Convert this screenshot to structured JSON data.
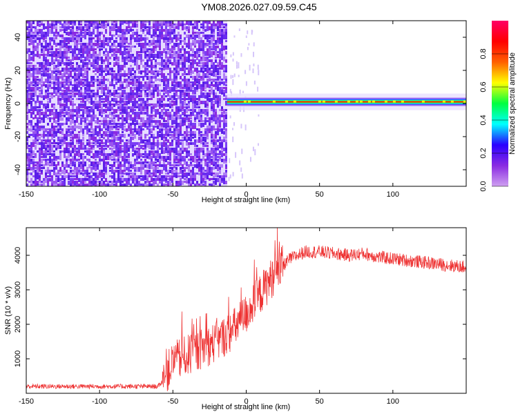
{
  "title": "YM08.2026.027.09.59.C45",
  "colors": {
    "snr_line": "#ee3333",
    "noise_purple": "#6a2cf0",
    "noise_light": "#e6dcff",
    "colorscale": [
      "#cfa0f0",
      "#8a2be2",
      "#2a00ff",
      "#00ffff",
      "#00ff40",
      "#ffff00",
      "#ff6000",
      "#ff0000",
      "#ff0066"
    ]
  },
  "chart_data": [
    {
      "type": "heatmap",
      "title": "",
      "xlabel": "Height of straight line (km)",
      "ylabel": "Frequency (Hz)",
      "xlim": [
        -150,
        150
      ],
      "ylim": [
        -50,
        50
      ],
      "xticks": [
        "-150",
        "-100",
        "-50",
        "0",
        "50",
        "100"
      ],
      "yticks": [
        "40",
        "20",
        "0",
        "-20",
        "-40"
      ],
      "colorbar": {
        "label": "Normalized spectral amplitude",
        "range": [
          0,
          1
        ],
        "ticks": [
          "0.0",
          "0.2",
          "0.4",
          "0.6",
          "0.8"
        ]
      },
      "regions": {
        "broadband_noise_x": [
          -150,
          -13
        ],
        "signal_x": [
          -13,
          150
        ],
        "signal_freq_hz": 1
      }
    },
    {
      "type": "line",
      "title": "",
      "xlabel": "Height of straight line (km)",
      "ylabel": "SNR (10 * v/v)",
      "xlim": [
        -150,
        150
      ],
      "ylim": [
        0,
        4800
      ],
      "xticks": [
        "-150",
        "-100",
        "-50",
        "0",
        "50",
        "100"
      ],
      "yticks": [
        "1000",
        "2000",
        "3000",
        "4000"
      ],
      "series": [
        {
          "x": [
            -150,
            -60,
            -57,
            -50,
            -40,
            -30,
            -20,
            -10,
            0,
            10,
            20,
            30,
            40,
            50,
            60,
            70,
            80,
            90,
            100,
            110,
            120,
            130,
            140,
            150
          ],
          "values": [
            200,
            200,
            350,
            900,
            1100,
            1300,
            1500,
            1800,
            2300,
            2900,
            3500,
            3900,
            4100,
            4100,
            4050,
            4000,
            4050,
            3950,
            3900,
            3850,
            3800,
            3750,
            3700,
            3650
          ]
        }
      ]
    }
  ]
}
